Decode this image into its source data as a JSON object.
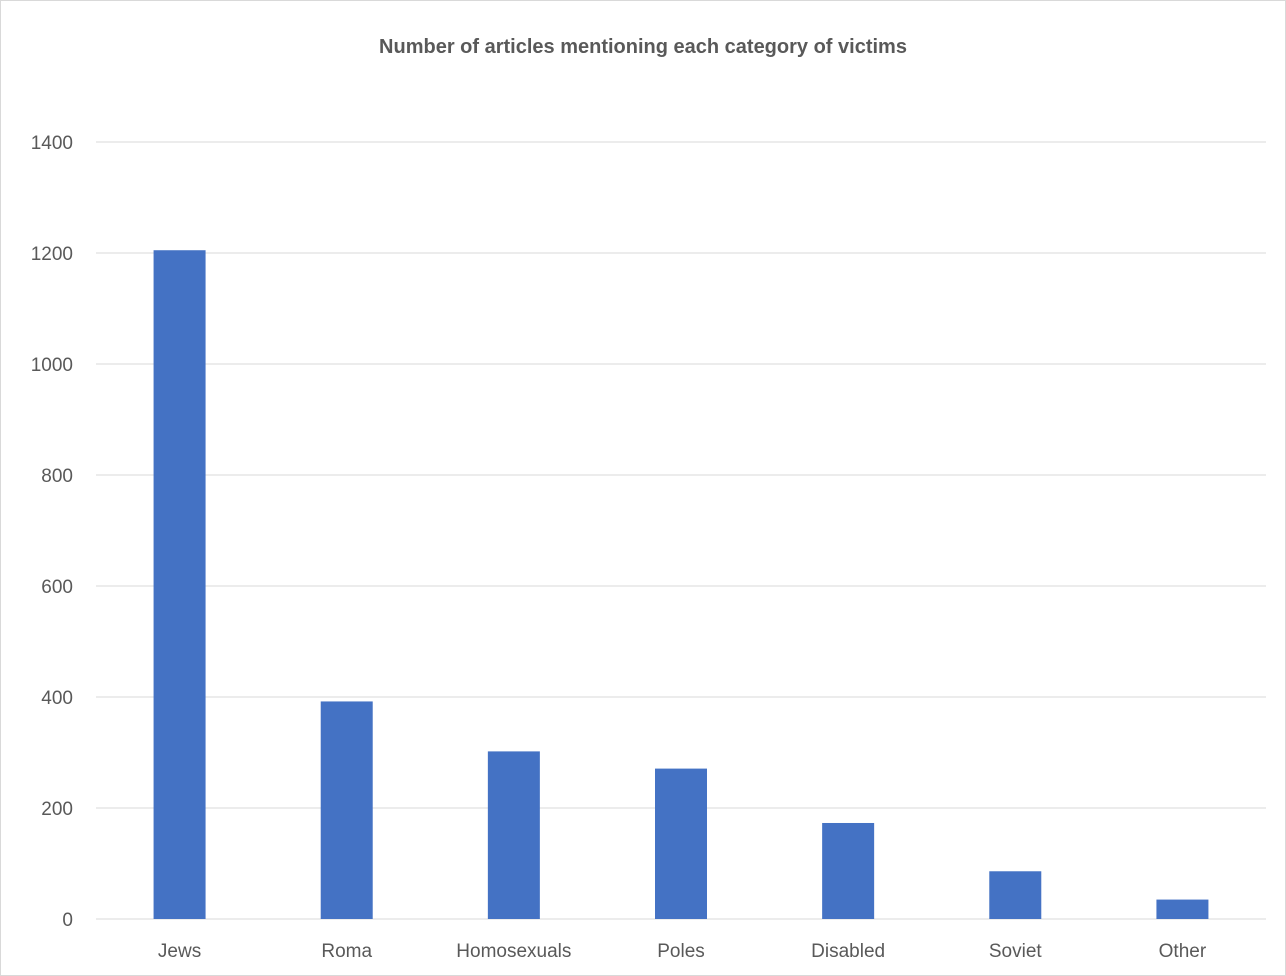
{
  "chart_data": {
    "type": "bar",
    "title": "Number of articles mentioning each category of victims",
    "xlabel": "",
    "ylabel": "",
    "categories": [
      "Jews",
      "Roma",
      "Homosexuals",
      "Poles",
      "Disabled",
      "Soviet",
      "Other"
    ],
    "values": [
      1205,
      392,
      302,
      271,
      173,
      86,
      35
    ],
    "ylim": [
      0,
      1400
    ],
    "yticks": [
      "0",
      "200",
      "400",
      "600",
      "800",
      "1000",
      "1200",
      "1400"
    ],
    "grid": true,
    "legend": "none",
    "bar_color": "#4472c4",
    "grid_color": "#d9d9d9",
    "text_color": "#595959"
  }
}
